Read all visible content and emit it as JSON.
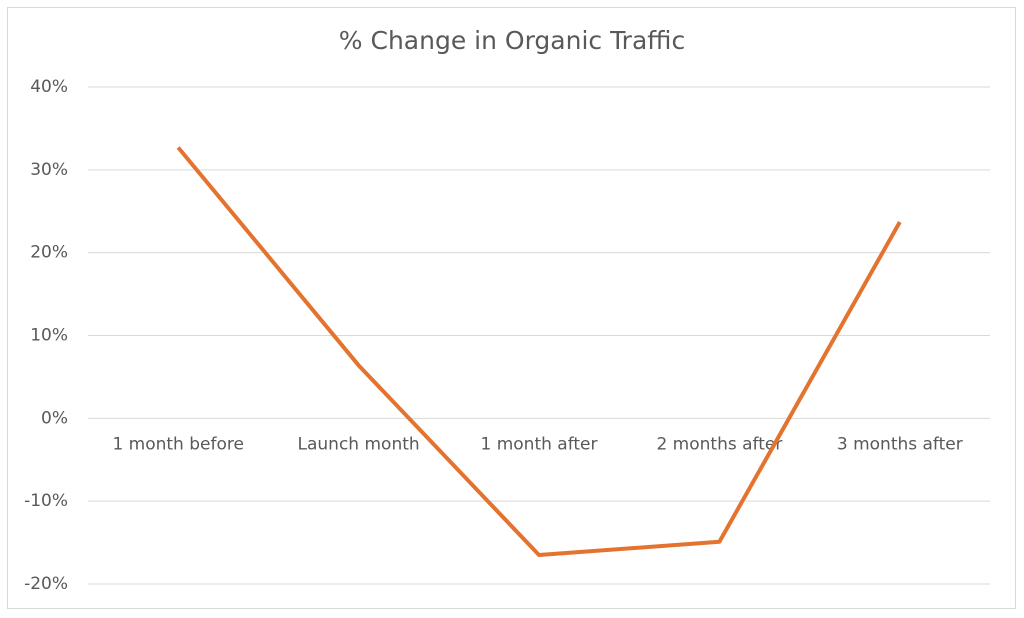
{
  "chart_data": {
    "type": "line",
    "title": "% Change in Organic Traffic",
    "categories": [
      "1 month before",
      "Launch month",
      "1 month after",
      "2 months after",
      "3 months after"
    ],
    "series": [
      {
        "color": "#e3732f",
        "values": [
          32.7,
          6.4,
          -16.5,
          -14.9,
          23.7
        ]
      }
    ],
    "ylim": [
      -20,
      40
    ],
    "yticks": [
      {
        "value": -20,
        "label": "-20%"
      },
      {
        "value": -10,
        "label": "-10%"
      },
      {
        "value": 0,
        "label": "0%"
      },
      {
        "value": 10,
        "label": "10%"
      },
      {
        "value": 20,
        "label": "20%"
      },
      {
        "value": 30,
        "label": "30%"
      },
      {
        "value": 40,
        "label": "40%"
      }
    ],
    "grid": true
  }
}
